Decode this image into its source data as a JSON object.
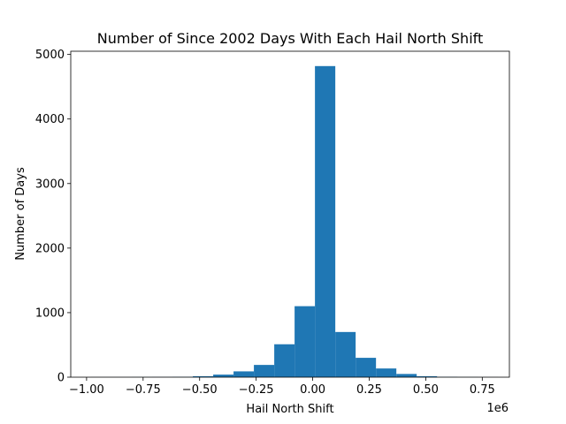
{
  "chart_data": {
    "type": "bar",
    "title": "Number of Since 2002 Days With Each Hail North Shift",
    "xlabel": "Hail North Shift",
    "ylabel": "Number of Days",
    "x_offset_label": "1e6",
    "xlim": [
      -1.07,
      0.87
    ],
    "ylim": [
      0,
      5050
    ],
    "x_ticks": [
      -1.0,
      -0.75,
      -0.5,
      -0.25,
      0.0,
      0.25,
      0.5,
      0.75
    ],
    "x_tick_labels": [
      "−1.00",
      "−0.75",
      "−0.50",
      "−0.25",
      "0.00",
      "0.25",
      "0.50",
      "0.75"
    ],
    "y_ticks": [
      0,
      1000,
      2000,
      3000,
      4000,
      5000
    ],
    "y_tick_labels": [
      "0",
      "1000",
      "2000",
      "3000",
      "4000",
      "5000"
    ],
    "bin_edges": [
      -0.98,
      -0.89,
      -0.8,
      -0.71,
      -0.62,
      -0.53,
      -0.44,
      -0.35,
      -0.26,
      -0.17,
      -0.08,
      0.01,
      0.1,
      0.19,
      0.28,
      0.37,
      0.46,
      0.55,
      0.64,
      0.73,
      0.82
    ],
    "values": [
      1,
      1,
      2,
      3,
      5,
      15,
      40,
      90,
      190,
      510,
      1100,
      4820,
      700,
      300,
      135,
      50,
      15,
      5,
      2,
      1
    ],
    "bar_color": "#1f77b4",
    "grid": false
  }
}
